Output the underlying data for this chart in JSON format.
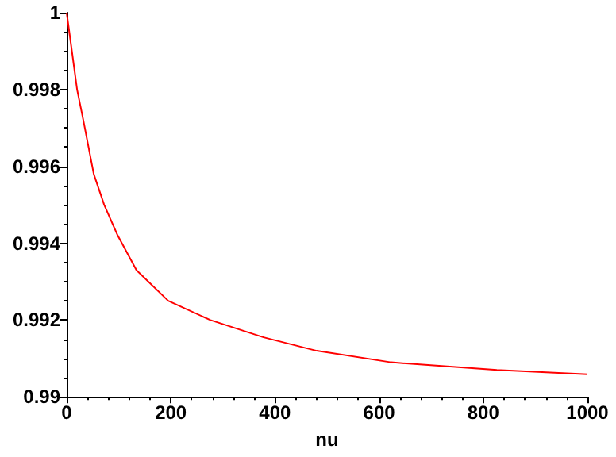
{
  "chart_data": {
    "type": "line",
    "xlabel": "nu",
    "x": [
      0,
      10,
      20,
      32,
      52,
      72,
      98,
      134,
      195,
      276,
      378,
      480,
      623,
      826,
      1000
    ],
    "series": [
      {
        "color": "#ff0000",
        "values": [
          1,
          0.999,
          0.998,
          0.9972,
          0.9958,
          0.995,
          0.9942,
          0.9933,
          0.9925,
          0.992,
          0.99155,
          0.9912,
          0.9909,
          0.9907,
          0.99059
        ]
      }
    ],
    "xlim": [
      0,
      1000
    ],
    "xticks": [
      0,
      200,
      400,
      600,
      800,
      1000
    ],
    "ylim": [
      0.99,
      1
    ],
    "yticks": [
      0.99,
      0.992,
      0.994,
      0.996,
      0.998,
      1
    ],
    "grid": false,
    "marker": "none",
    "line_style": "solid"
  }
}
